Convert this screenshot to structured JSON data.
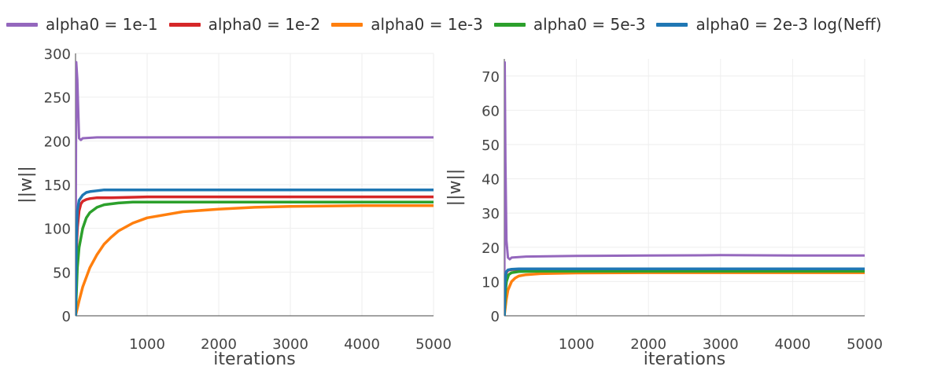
{
  "legend_position": "top",
  "chart_data": [
    {
      "type": "line",
      "xlabel": "iterations",
      "ylabel": "||w||",
      "xlim": [
        0,
        5000
      ],
      "ylim": [
        0,
        300
      ],
      "xticks": [
        1000,
        2000,
        3000,
        4000,
        5000
      ],
      "yticks": [
        0,
        50,
        100,
        150,
        200,
        250,
        300
      ],
      "grid": true,
      "series": [
        {
          "name": "alpha0 = 1e-1",
          "color": "#9467bd",
          "x": [
            0,
            10,
            25,
            50,
            75,
            100,
            300,
            1000,
            2000,
            3000,
            4000,
            5000
          ],
          "y": [
            0,
            290,
            270,
            203,
            201,
            203,
            204,
            204,
            204,
            204,
            204,
            204
          ]
        },
        {
          "name": "alpha0 = 1e-2",
          "color": "#d62728",
          "x": [
            0,
            10,
            25,
            50,
            75,
            100,
            150,
            200,
            300,
            500,
            1000,
            2000,
            3000,
            4000,
            5000
          ],
          "y": [
            0,
            70,
            100,
            120,
            128,
            131,
            133,
            134,
            135,
            135,
            136,
            136,
            136,
            136,
            136
          ]
        },
        {
          "name": "alpha0 = 1e-3",
          "color": "#ff7f0e",
          "x": [
            0,
            50,
            100,
            200,
            300,
            400,
            500,
            600,
            800,
            1000,
            1500,
            2000,
            2500,
            3000,
            4000,
            5000
          ],
          "y": [
            0,
            17,
            33,
            55,
            70,
            82,
            90,
            97,
            106,
            112,
            119,
            122,
            124,
            125,
            126,
            126
          ]
        },
        {
          "name": "alpha0 = 5e-3",
          "color": "#2ca02c",
          "x": [
            0,
            25,
            50,
            100,
            150,
            200,
            300,
            400,
            600,
            800,
            1000,
            2000,
            3000,
            4000,
            5000
          ],
          "y": [
            0,
            55,
            78,
            100,
            112,
            118,
            124,
            127,
            129,
            130,
            130,
            130,
            130,
            130,
            130
          ]
        },
        {
          "name": "alpha0 = 2e-3 log(Neff)",
          "color": "#1f77b4",
          "x": [
            0,
            10,
            25,
            50,
            100,
            150,
            200,
            300,
            400,
            1000,
            2000,
            3000,
            4000,
            5000
          ],
          "y": [
            0,
            80,
            120,
            132,
            138,
            141,
            142,
            143,
            144,
            144,
            144,
            144,
            144,
            144
          ]
        }
      ]
    },
    {
      "type": "line",
      "xlabel": "iterations",
      "ylabel": "||w||",
      "xlim": [
        0,
        5000
      ],
      "ylim": [
        0,
        75
      ],
      "xticks": [
        1000,
        2000,
        3000,
        4000,
        5000
      ],
      "yticks": [
        0,
        10,
        20,
        30,
        40,
        50,
        60,
        70
      ],
      "grid": true,
      "series": [
        {
          "name": "alpha0 = 1e-1",
          "color": "#9467bd",
          "x": [
            0,
            5,
            15,
            30,
            50,
            75,
            100,
            300,
            1000,
            2000,
            3000,
            4000,
            5000
          ],
          "y": [
            0,
            74,
            45,
            22,
            17,
            16.5,
            17,
            17.3,
            17.5,
            17.6,
            17.7,
            17.6,
            17.6
          ]
        },
        {
          "name": "alpha0 = 1e-2",
          "color": "#d62728",
          "x": [
            0,
            10,
            25,
            50,
            100,
            200,
            1000,
            2000,
            3000,
            4000,
            5000
          ],
          "y": [
            0,
            9,
            12.5,
            13.3,
            13.5,
            13.5,
            13.5,
            13.5,
            13.5,
            13.5,
            13.5
          ]
        },
        {
          "name": "alpha0 = 1e-3",
          "color": "#ff7f0e",
          "x": [
            0,
            25,
            50,
            100,
            150,
            200,
            300,
            500,
            1000,
            2000,
            3000,
            4000,
            5000
          ],
          "y": [
            0,
            4.5,
            7.5,
            10,
            11,
            11.6,
            12.0,
            12.3,
            12.5,
            12.6,
            12.6,
            12.6,
            12.6
          ]
        },
        {
          "name": "alpha0 = 5e-3",
          "color": "#2ca02c",
          "x": [
            0,
            15,
            30,
            60,
            100,
            200,
            500,
            1000,
            2000,
            3000,
            4000,
            5000
          ],
          "y": [
            0,
            7,
            10,
            12,
            12.6,
            12.9,
            13.0,
            13.0,
            13.0,
            13.0,
            13.0,
            13.0
          ]
        },
        {
          "name": "alpha0 = 2e-3 log(Neff)",
          "color": "#1f77b4",
          "x": [
            0,
            10,
            25,
            50,
            100,
            200,
            1000,
            2000,
            3000,
            4000,
            5000
          ],
          "y": [
            0,
            10,
            12.8,
            13.4,
            13.6,
            13.7,
            13.7,
            13.7,
            13.7,
            13.7,
            13.7
          ]
        }
      ]
    }
  ]
}
